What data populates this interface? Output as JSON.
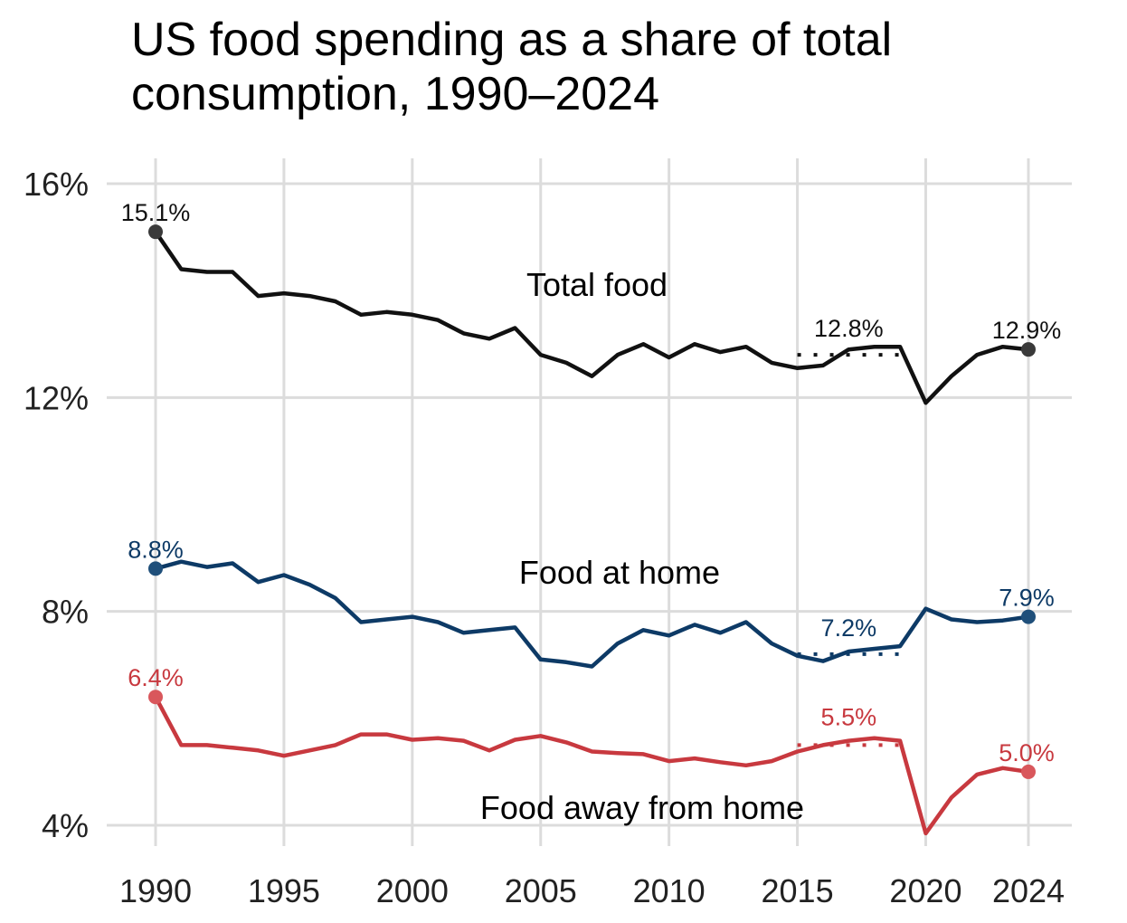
{
  "chart_data": {
    "type": "line",
    "title": "US food spending as a share of total consumption, 1990–2024",
    "xlabel": "",
    "ylabel": "",
    "xlim": [
      1990,
      2024
    ],
    "ylim": [
      4,
      16
    ],
    "grid": true,
    "x_ticks": [
      1990,
      1995,
      2000,
      2005,
      2010,
      2015,
      2020,
      2024
    ],
    "x_tick_labels": [
      "1990",
      "1995",
      "2000",
      "2005",
      "2010",
      "2015",
      "2020",
      "2024"
    ],
    "y_ticks": [
      4,
      8,
      12,
      16
    ],
    "y_tick_labels": [
      "4%",
      "8%",
      "12%",
      "16%"
    ],
    "x": [
      1990,
      1991,
      1992,
      1993,
      1994,
      1995,
      1996,
      1997,
      1998,
      1999,
      2000,
      2001,
      2002,
      2003,
      2004,
      2005,
      2006,
      2007,
      2008,
      2009,
      2010,
      2011,
      2012,
      2013,
      2014,
      2015,
      2016,
      2017,
      2018,
      2019,
      2020,
      2021,
      2022,
      2023,
      2024
    ],
    "series": [
      {
        "name": "Total food",
        "color": "#111111",
        "dot_color": "#3a3a3a",
        "values": [
          15.1,
          14.4,
          14.35,
          14.35,
          13.9,
          13.95,
          13.9,
          13.8,
          13.55,
          13.6,
          13.55,
          13.45,
          13.2,
          13.1,
          13.3,
          12.8,
          12.65,
          12.4,
          12.8,
          13.0,
          12.75,
          13.0,
          12.85,
          12.95,
          12.65,
          12.55,
          12.6,
          12.9,
          12.95,
          12.95,
          11.9,
          12.4,
          12.8,
          12.95,
          12.9
        ],
        "avg_2015_2019": 12.8,
        "labels": {
          "start": "15.1%",
          "avg": "12.8%",
          "end": "12.9%"
        }
      },
      {
        "name": "Food at home",
        "color": "#0d3a66",
        "dot_color": "#1f4f7a",
        "values": [
          8.8,
          8.93,
          8.83,
          8.9,
          8.55,
          8.68,
          8.5,
          8.25,
          7.8,
          7.85,
          7.9,
          7.8,
          7.6,
          7.65,
          7.7,
          7.1,
          7.05,
          6.97,
          7.4,
          7.65,
          7.55,
          7.75,
          7.6,
          7.8,
          7.4,
          7.17,
          7.07,
          7.25,
          7.3,
          7.35,
          8.05,
          7.85,
          7.8,
          7.83,
          7.9
        ],
        "avg_2015_2019": 7.2,
        "labels": {
          "start": "8.8%",
          "avg": "7.2%",
          "end": "7.9%"
        }
      },
      {
        "name": "Food away from home",
        "color": "#c8393f",
        "dot_color": "#d9575c",
        "values": [
          6.4,
          5.5,
          5.5,
          5.45,
          5.4,
          5.3,
          5.4,
          5.5,
          5.7,
          5.7,
          5.6,
          5.63,
          5.58,
          5.4,
          5.6,
          5.67,
          5.55,
          5.38,
          5.35,
          5.33,
          5.2,
          5.25,
          5.18,
          5.12,
          5.2,
          5.38,
          5.5,
          5.58,
          5.63,
          5.58,
          3.85,
          4.52,
          4.95,
          5.07,
          5.0
        ],
        "avg_2015_2019": 5.5,
        "labels": {
          "start": "6.4%",
          "avg": "5.5%",
          "end": "5.0%"
        }
      }
    ]
  }
}
